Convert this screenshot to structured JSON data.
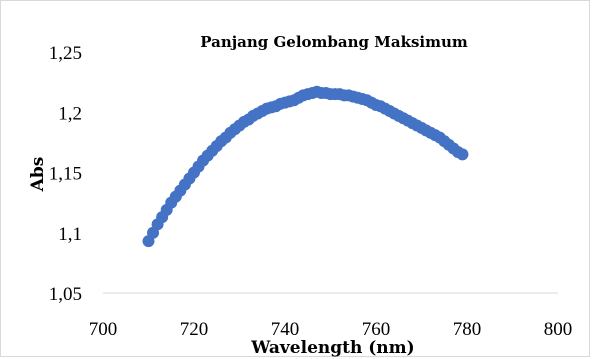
{
  "chart_data": {
    "type": "scatter",
    "title": "Panjang Gelombang Maksimum",
    "xlabel": "Wavelength (nm)",
    "ylabel": "Abs",
    "xlim": [
      700,
      800
    ],
    "ylim": [
      1.05,
      1.25
    ],
    "x_ticks": [
      "700",
      "720",
      "740",
      "760",
      "780",
      "800"
    ],
    "y_ticks": [
      "1,05",
      "1,1",
      "1,15",
      "1,2",
      "1,25"
    ],
    "grid": false,
    "legend": "none",
    "marker_color": "#4472c4",
    "series": [
      {
        "x": [
          710,
          711,
          712,
          713,
          714,
          715,
          716,
          717,
          718,
          719,
          720,
          721,
          722,
          723,
          724,
          725,
          726,
          727,
          728,
          729,
          730,
          731,
          732,
          733,
          734,
          735,
          736,
          737,
          738,
          739,
          740,
          741,
          742,
          743,
          744,
          745,
          746,
          747,
          748,
          749,
          750,
          751,
          752,
          753,
          754,
          755,
          756,
          757,
          758,
          759,
          760,
          761,
          762,
          763,
          764,
          765,
          766,
          767,
          768,
          769,
          770,
          771,
          772,
          773,
          774,
          775,
          776,
          777,
          778,
          779
        ],
        "y": [
          1.093,
          1.1,
          1.107,
          1.113,
          1.119,
          1.125,
          1.13,
          1.135,
          1.14,
          1.145,
          1.15,
          1.155,
          1.16,
          1.164,
          1.168,
          1.172,
          1.176,
          1.179,
          1.183,
          1.186,
          1.189,
          1.192,
          1.194,
          1.197,
          1.199,
          1.201,
          1.203,
          1.204,
          1.205,
          1.207,
          1.208,
          1.209,
          1.21,
          1.212,
          1.214,
          1.215,
          1.216,
          1.217,
          1.216,
          1.216,
          1.215,
          1.215,
          1.215,
          1.214,
          1.214,
          1.213,
          1.212,
          1.211,
          1.21,
          1.208,
          1.206,
          1.205,
          1.203,
          1.201,
          1.199,
          1.197,
          1.195,
          1.193,
          1.191,
          1.189,
          1.187,
          1.185,
          1.183,
          1.181,
          1.179,
          1.176,
          1.173,
          1.17,
          1.167,
          1.165
        ]
      }
    ]
  }
}
